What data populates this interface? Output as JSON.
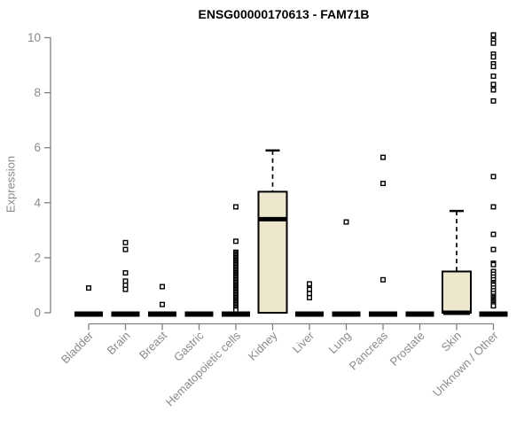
{
  "chart_data": {
    "type": "boxplot",
    "title": "ENSG00000170613 - FAM71B",
    "ylabel": "Expression",
    "xlabel": "",
    "ylim": [
      0,
      10
    ],
    "yticks": [
      0,
      2,
      4,
      6,
      8,
      10
    ],
    "grid": false,
    "legend": "none",
    "colors": {
      "box_fill": "#EDE8CD",
      "box_stroke": "#000000",
      "axis": "#7f7f7f",
      "tick_label": "#8a8a8a",
      "title": "#000000"
    },
    "categories": [
      "Bladder",
      "Brain",
      "Breast",
      "Gastric",
      "Hematopoietic cells",
      "Kidney",
      "Liver",
      "Lung",
      "Pancreas",
      "Prostate",
      "Skin",
      "Unknown / Other"
    ],
    "series": [
      {
        "category": "Bladder",
        "q1": 0,
        "median": 0,
        "q3": 0,
        "whisker_low": 0,
        "whisker_high": 0,
        "outliers": [
          0.9
        ]
      },
      {
        "category": "Brain",
        "q1": 0,
        "median": 0,
        "q3": 0,
        "whisker_low": 0,
        "whisker_high": 0,
        "outliers": [
          2.55,
          2.3,
          1.45,
          1.15,
          1.0,
          0.85
        ]
      },
      {
        "category": "Breast",
        "q1": 0,
        "median": 0,
        "q3": 0,
        "whisker_low": 0,
        "whisker_high": 0,
        "outliers": [
          0.95,
          0.3
        ]
      },
      {
        "category": "Gastric",
        "q1": 0,
        "median": 0,
        "q3": 0,
        "whisker_low": 0,
        "whisker_high": 0,
        "outliers": []
      },
      {
        "category": "Hematopoietic cells",
        "q1": 0,
        "median": 0,
        "q3": 0,
        "whisker_low": 0,
        "whisker_high": 0,
        "outliers": [
          3.85,
          2.6,
          2.2,
          2.15,
          2.1,
          2.05,
          2.0,
          1.95,
          1.9,
          1.85,
          1.8,
          1.75,
          1.7,
          1.65,
          1.6,
          1.55,
          1.5,
          1.45,
          1.4,
          1.35,
          1.3,
          1.25,
          1.2,
          1.15,
          1.1,
          1.05,
          1.0,
          0.95,
          0.9,
          0.85,
          0.8,
          0.75,
          0.7,
          0.65,
          0.6,
          0.55,
          0.5,
          0.45,
          0.4,
          0.35,
          0.3,
          0.25,
          0.2,
          0.15,
          0.1
        ]
      },
      {
        "category": "Kidney",
        "q1": 0,
        "median": 3.4,
        "q3": 4.4,
        "whisker_low": 0,
        "whisker_high": 5.9,
        "outliers": []
      },
      {
        "category": "Liver",
        "q1": 0,
        "median": 0,
        "q3": 0,
        "whisker_low": 0,
        "whisker_high": 0,
        "outliers": [
          1.05,
          0.85,
          0.7,
          0.55
        ]
      },
      {
        "category": "Lung",
        "q1": 0,
        "median": 0,
        "q3": 0,
        "whisker_low": 0,
        "whisker_high": 0,
        "outliers": [
          3.3
        ]
      },
      {
        "category": "Pancreas",
        "q1": 0,
        "median": 0,
        "q3": 0,
        "whisker_low": 0,
        "whisker_high": 0,
        "outliers": [
          5.65,
          4.7,
          1.2
        ]
      },
      {
        "category": "Prostate",
        "q1": 0,
        "median": 0,
        "q3": 0,
        "whisker_low": 0,
        "whisker_high": 0,
        "outliers": []
      },
      {
        "category": "Skin",
        "q1": 0,
        "median": 0,
        "q3": 1.5,
        "whisker_low": 0,
        "whisker_high": 3.7,
        "outliers": []
      },
      {
        "category": "Unknown / Other",
        "q1": 0,
        "median": 0,
        "q3": 0,
        "whisker_low": 0,
        "whisker_high": 0,
        "outliers": [
          10.1,
          9.9,
          9.8,
          9.4,
          9.3,
          9.05,
          8.95,
          8.6,
          8.3,
          8.1,
          7.7,
          4.95,
          3.85,
          2.85,
          2.3,
          1.8,
          1.75,
          1.5,
          1.4,
          1.3,
          1.2,
          1.1,
          1.05,
          1.0,
          0.9,
          0.8,
          0.7,
          0.6,
          0.55,
          0.5,
          0.45,
          0.4,
          0.35,
          0.3,
          0.25
        ]
      }
    ]
  }
}
